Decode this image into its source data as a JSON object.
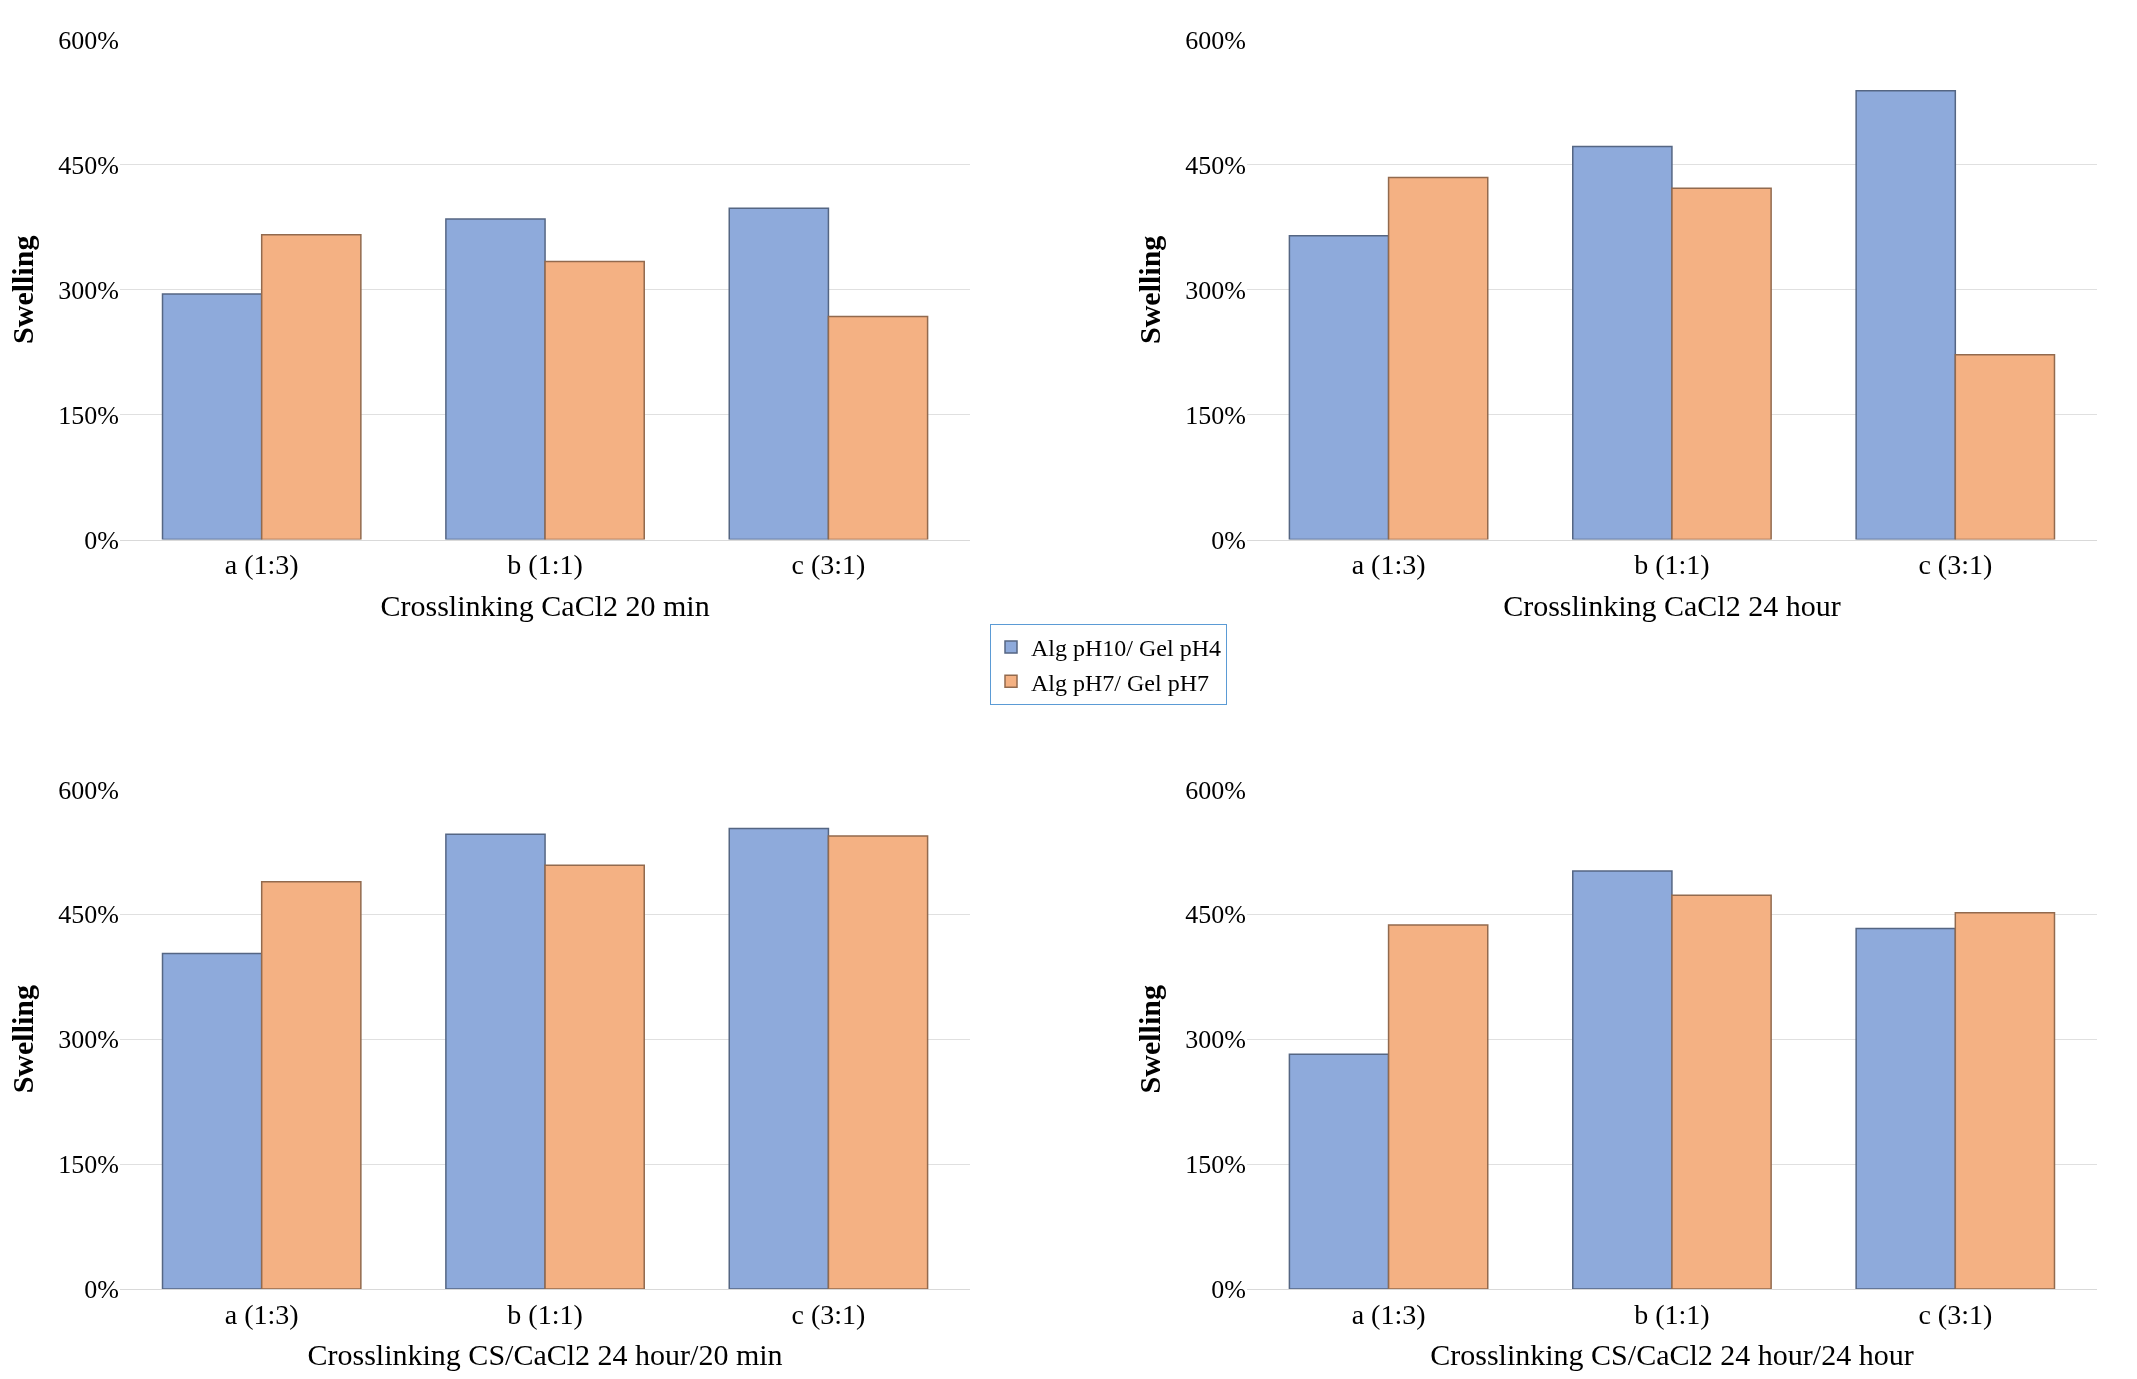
{
  "chart_data": [
    {
      "type": "bar",
      "xlabel": "Crosslinking CaCl2 20 min",
      "ylabel": "Swelling",
      "categories": [
        "a (1:3)",
        "b (1:1)",
        "c (3:1)"
      ],
      "legend": "bottom right",
      "grid": "y",
      "ylim": [
        0,
        600
      ],
      "yticks": [
        {
          "value": 0,
          "label": "0%"
        },
        {
          "value": 150,
          "label": "150%"
        },
        {
          "value": 300,
          "label": "300%"
        },
        {
          "value": 450,
          "label": "450%"
        },
        {
          "value": 600,
          "label": "600%"
        }
      ],
      "series": [
        {
          "name": "Alg pH10/ Gel pH4",
          "color": "#8eaadb",
          "values": [
            295,
            385,
            398
          ]
        },
        {
          "name": "Alg pH7/ Gel pH7",
          "color": "#f4b183",
          "values": [
            366,
            334,
            268
          ]
        }
      ]
    },
    {
      "type": "bar",
      "xlabel": "Crosslinking CaCl2 24 hour",
      "ylabel": "Swelling",
      "categories": [
        "a (1:3)",
        "b (1:1)",
        "c (3:1)"
      ],
      "grid": "y",
      "ylim": [
        0,
        600
      ],
      "yticks": [
        {
          "value": 0,
          "label": "0%"
        },
        {
          "value": 150,
          "label": "150%"
        },
        {
          "value": 300,
          "label": "300%"
        },
        {
          "value": 450,
          "label": "450%"
        },
        {
          "value": 600,
          "label": "600%"
        }
      ],
      "series": [
        {
          "color": "#8eaadb",
          "values": [
            365,
            472,
            539
          ]
        },
        {
          "color": "#f4b183",
          "values": [
            435,
            422,
            222
          ]
        }
      ]
    },
    {
      "type": "bar",
      "xlabel": "Crosslinking CS/CaCl2 24 hour/20 min",
      "ylabel": "Swelling",
      "categories": [
        "a (1:3)",
        "b (1:1)",
        "c (3:1)"
      ],
      "grid": "y",
      "ylim": [
        0,
        600
      ],
      "yticks": [
        {
          "value": 0,
          "label": "0%"
        },
        {
          "value": 150,
          "label": "150%"
        },
        {
          "value": 300,
          "label": "300%"
        },
        {
          "value": 450,
          "label": "450%"
        },
        {
          "value": 600,
          "label": "600%"
        }
      ],
      "series": [
        {
          "color": "#8eaadb",
          "values": [
            403,
            546,
            553
          ]
        },
        {
          "color": "#f4b183",
          "values": [
            489,
            509,
            544
          ]
        }
      ]
    },
    {
      "type": "bar",
      "xlabel": "Crosslinking CS/CaCl2 24 hour/24 hour",
      "ylabel": "Swelling",
      "categories": [
        "a (1:3)",
        "b (1:1)",
        "c (3:1)"
      ],
      "grid": "y",
      "ylim": [
        0,
        600
      ],
      "yticks": [
        {
          "value": 0,
          "label": "0%"
        },
        {
          "value": 150,
          "label": "150%"
        },
        {
          "value": 300,
          "label": "300%"
        },
        {
          "value": 450,
          "label": "450%"
        },
        {
          "value": 600,
          "label": "600%"
        }
      ],
      "series": [
        {
          "color": "#8eaadb",
          "values": [
            282,
            502,
            433
          ]
        },
        {
          "color": "#f4b183",
          "values": [
            437,
            473,
            452
          ]
        }
      ]
    }
  ]
}
